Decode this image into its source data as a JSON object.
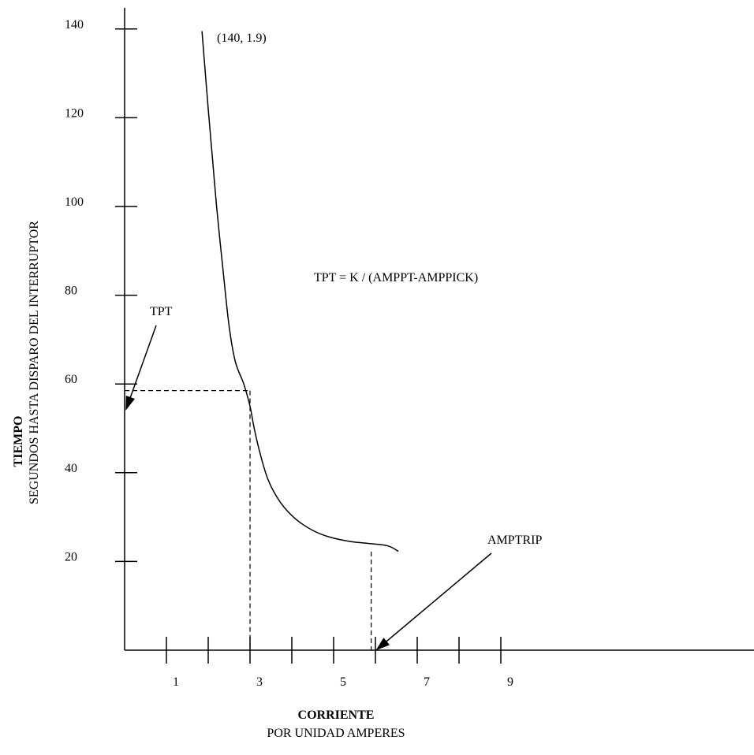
{
  "chart_data": {
    "type": "line",
    "xlabel_title": "CORRIENTE",
    "xlabel_sub": "POR UNIDAD AMPERES",
    "ylabel_title": "TIEMPO",
    "ylabel_sub": "SEGUNDOS HASTA DISPARO DEL INTERRUPTOR",
    "x_tick_positions": [
      1,
      2,
      3,
      4,
      5,
      6,
      7,
      8,
      9
    ],
    "x_tick_labels": [
      {
        "x": 1,
        "label": "1"
      },
      {
        "x": 3,
        "label": "3"
      },
      {
        "x": 5,
        "label": "5"
      },
      {
        "x": 7,
        "label": "7"
      },
      {
        "x": 9,
        "label": "9"
      }
    ],
    "y_ticks": [
      20,
      40,
      60,
      80,
      100,
      120,
      140
    ],
    "y_tick_labels": [
      "20",
      "40",
      "60",
      "80",
      "100",
      "120",
      "140"
    ],
    "xlim": [
      0,
      15
    ],
    "ylim": [
      0,
      150
    ],
    "series": [
      {
        "points": [
          [
            1.85,
            139.5
          ],
          [
            2.0,
            122
          ],
          [
            2.1,
            111
          ],
          [
            2.2,
            100
          ],
          [
            2.35,
            86
          ],
          [
            2.5,
            73
          ],
          [
            2.65,
            65
          ],
          [
            2.85,
            60
          ],
          [
            3.0,
            55
          ],
          [
            3.1,
            50
          ],
          [
            3.25,
            44
          ],
          [
            3.45,
            38
          ],
          [
            3.75,
            33
          ],
          [
            4.1,
            29.5
          ],
          [
            4.5,
            27
          ],
          [
            4.9,
            25.5
          ],
          [
            5.4,
            24.5
          ],
          [
            5.9,
            24
          ],
          [
            6.3,
            23.5
          ],
          [
            6.55,
            22.3
          ]
        ]
      }
    ],
    "dashed_guides": {
      "tpt": {
        "x": 3.0,
        "y": 58.5
      },
      "amptrip": {
        "x": 5.9,
        "y_top": 22.2
      }
    },
    "annotations": {
      "point_label": "(140, 1.9)",
      "formula": "TPT = K / (AMPPT-AMPPICK)",
      "tpt_label": "TPT",
      "amptrip_label": "AMPTRIP"
    }
  }
}
